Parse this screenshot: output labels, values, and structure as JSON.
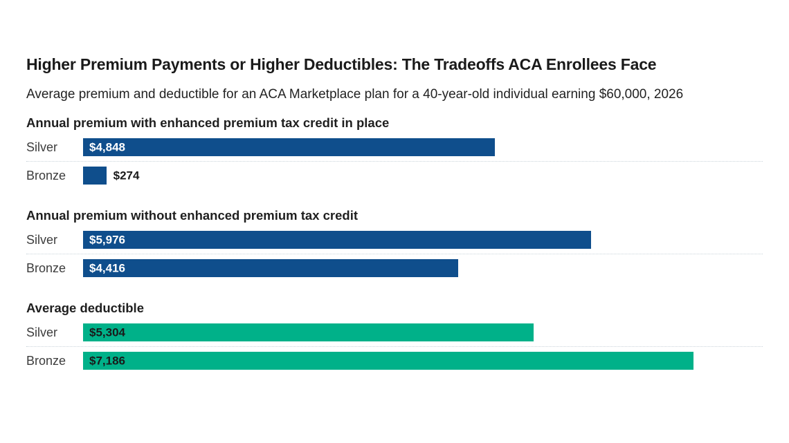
{
  "header": {
    "title": "Higher Premium Payments or Higher Deductibles: The Tradeoffs ACA Enrollees Face",
    "subtitle": "Average premium and deductible for an ACA Marketplace plan for a 40-year-old individual earning $60,000, 2026"
  },
  "colors": {
    "premium_bar": "#0f4e8c",
    "deductible_bar": "#00b189",
    "separator": "#c9d3da",
    "outside_value_text": "#1a1a1a"
  },
  "chart_data": {
    "type": "bar",
    "orientation": "horizontal",
    "title": "Higher Premium Payments or Higher Deductibles: The Tradeoffs ACA Enrollees Face",
    "subtitle": "Average premium and deductible for an ACA Marketplace plan for a 40-year-old individual earning $60,000, 2026",
    "unit": "USD",
    "axis_max": 8000,
    "grid": false,
    "legend": false,
    "sections": [
      {
        "heading": "Annual premium with enhanced premium tax credit in place",
        "bar_color": "#0f4e8c",
        "value_text_color": "#ffffff",
        "rows": [
          {
            "category": "Silver",
            "value": 4848,
            "display": "$4,848"
          },
          {
            "category": "Bronze",
            "value": 274,
            "display": "$274"
          }
        ]
      },
      {
        "heading": "Annual premium without enhanced premium tax credit",
        "bar_color": "#0f4e8c",
        "value_text_color": "#ffffff",
        "rows": [
          {
            "category": "Silver",
            "value": 5976,
            "display": "$5,976"
          },
          {
            "category": "Bronze",
            "value": 4416,
            "display": "$4,416"
          }
        ]
      },
      {
        "heading": "Average deductible",
        "bar_color": "#00b189",
        "value_text_color": "#1a1a1a",
        "rows": [
          {
            "category": "Silver",
            "value": 5304,
            "display": "$5,304"
          },
          {
            "category": "Bronze",
            "value": 7186,
            "display": "$7,186"
          }
        ]
      }
    ]
  }
}
